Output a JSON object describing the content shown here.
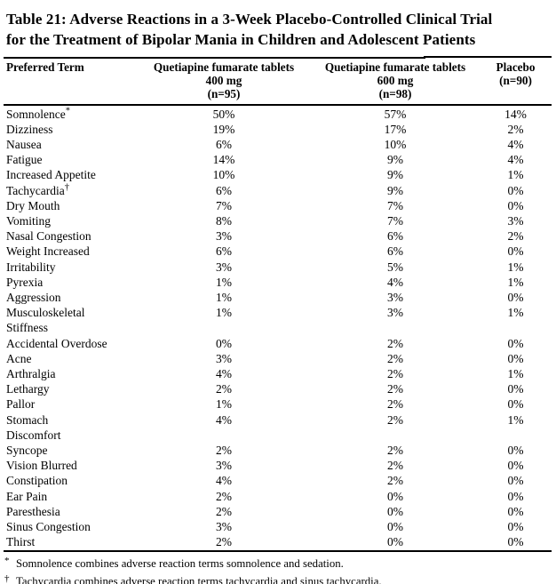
{
  "title_lines": [
    "Table 21: Adverse Reactions in a 3-Week Placebo-Controlled Clinical Trial",
    "for the Treatment of Bipolar Mania in Children and Adolescent Patients"
  ],
  "table": {
    "header": {
      "term": "Preferred Term",
      "col_400": [
        "Quetiapine fumarate tablets",
        "400 mg",
        "(n=95)"
      ],
      "col_600": [
        "Quetiapine fumarate tablets",
        "600 mg",
        "(n=98)"
      ],
      "placebo": [
        "Placebo",
        "(n=90)"
      ]
    },
    "rows": [
      {
        "term": "Somnolence",
        "marker": "*",
        "q400": "50%",
        "q600": "57%",
        "placebo": "14%"
      },
      {
        "term": "Dizziness",
        "marker": "",
        "q400": "19%",
        "q600": "17%",
        "placebo": "2%"
      },
      {
        "term": "Nausea",
        "marker": "",
        "q400": "6%",
        "q600": "10%",
        "placebo": "4%"
      },
      {
        "term": "Fatigue",
        "marker": "",
        "q400": "14%",
        "q600": "9%",
        "placebo": "4%"
      },
      {
        "term": "Increased Appetite",
        "marker": "",
        "q400": "10%",
        "q600": "9%",
        "placebo": "1%"
      },
      {
        "term": "Tachycardia",
        "marker": "†",
        "q400": "6%",
        "q600": "9%",
        "placebo": "0%"
      },
      {
        "term": "Dry Mouth",
        "marker": "",
        "q400": "7%",
        "q600": "7%",
        "placebo": "0%"
      },
      {
        "term": "Vomiting",
        "marker": "",
        "q400": "8%",
        "q600": "7%",
        "placebo": "3%"
      },
      {
        "term": "Nasal Congestion",
        "marker": "",
        "q400": "3%",
        "q600": "6%",
        "placebo": "2%"
      },
      {
        "term": "Weight Increased",
        "marker": "",
        "q400": "6%",
        "q600": "6%",
        "placebo": "0%"
      },
      {
        "term": "Irritability",
        "marker": "",
        "q400": "3%",
        "q600": "5%",
        "placebo": "1%"
      },
      {
        "term": "Pyrexia",
        "marker": "",
        "q400": "1%",
        "q600": "4%",
        "placebo": "1%"
      },
      {
        "term": "Aggression",
        "marker": "",
        "q400": "1%",
        "q600": "3%",
        "placebo": "0%"
      },
      {
        "term": "Musculoskeletal\nStiffness",
        "marker": "",
        "q400": "1%",
        "q600": "3%",
        "placebo": "1%"
      },
      {
        "term": "Accidental Overdose",
        "marker": "",
        "q400": "0%",
        "q600": "2%",
        "placebo": "0%"
      },
      {
        "term": "Acne",
        "marker": "",
        "q400": "3%",
        "q600": "2%",
        "placebo": "0%"
      },
      {
        "term": "Arthralgia",
        "marker": "",
        "q400": "4%",
        "q600": "2%",
        "placebo": "1%"
      },
      {
        "term": "Lethargy",
        "marker": "",
        "q400": "2%",
        "q600": "2%",
        "placebo": "0%"
      },
      {
        "term": "Pallor",
        "marker": "",
        "q400": "1%",
        "q600": "2%",
        "placebo": "0%"
      },
      {
        "term": "Stomach\nDiscomfort",
        "marker": "",
        "q400": "4%",
        "q600": "2%",
        "placebo": "1%"
      },
      {
        "term": "Syncope",
        "marker": "",
        "q400": "2%",
        "q600": "2%",
        "placebo": "0%"
      },
      {
        "term": "Vision Blurred",
        "marker": "",
        "q400": "3%",
        "q600": "2%",
        "placebo": "0%"
      },
      {
        "term": "Constipation",
        "marker": "",
        "q400": "4%",
        "q600": "2%",
        "placebo": "0%"
      },
      {
        "term": "Ear Pain",
        "marker": "",
        "q400": "2%",
        "q600": "0%",
        "placebo": "0%"
      },
      {
        "term": "Paresthesia",
        "marker": "",
        "q400": "2%",
        "q600": "0%",
        "placebo": "0%"
      },
      {
        "term": "Sinus Congestion",
        "marker": "",
        "q400": "3%",
        "q600": "0%",
        "placebo": "0%"
      },
      {
        "term": "Thirst",
        "marker": "",
        "q400": "2%",
        "q600": "0%",
        "placebo": "0%"
      }
    ]
  },
  "footnotes": [
    {
      "marker": "*",
      "text": "Somnolence combines adverse reaction terms somnolence and sedation."
    },
    {
      "marker": "†",
      "text": "Tachycardia combines adverse reaction terms tachycardia and sinus tachycardia."
    }
  ],
  "colors": {
    "text": "#000000",
    "background": "#ffffff",
    "rule": "#000000"
  }
}
